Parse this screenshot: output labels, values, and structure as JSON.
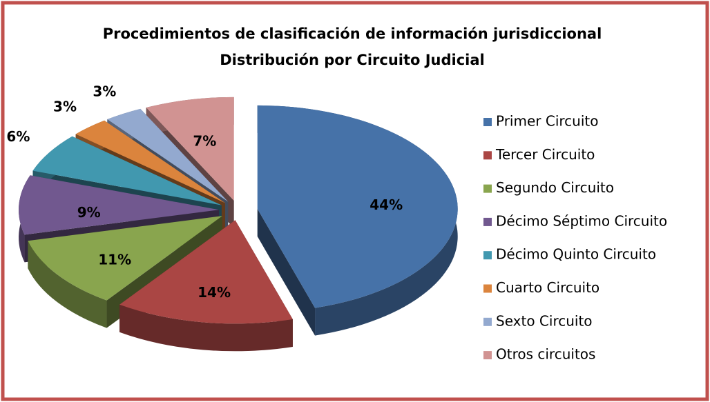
{
  "chart_data": {
    "type": "pie3d",
    "title": [
      "Procedimientos de clasificación de información jurisdiccional",
      "Distribución por Circuito Judicial"
    ],
    "categories": [
      "Primer Circuito",
      "Tercer Circuito",
      "Segundo Circuito",
      "Décimo Séptimo Circuito",
      "Décimo Quinto Circuito",
      "Cuarto Circuito",
      "Sexto Circuito",
      "Otros circuitos"
    ],
    "values": [
      44,
      14,
      11,
      9,
      6,
      3,
      3,
      7
    ],
    "value_labels": [
      "44%",
      "14%",
      "11%",
      "9%",
      "6%",
      "3%",
      "3%",
      "7%"
    ],
    "colors": [
      "#4672a8",
      "#aa4644",
      "#89a54e",
      "#71588f",
      "#4198af",
      "#db843d",
      "#93a9cf",
      "#d19392"
    ],
    "legend": "right"
  }
}
